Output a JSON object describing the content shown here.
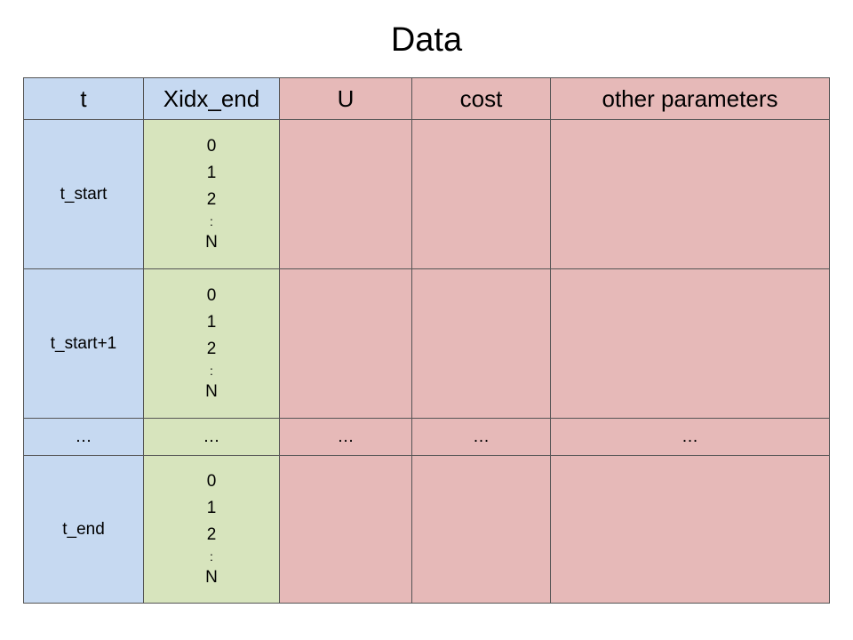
{
  "title": "Data",
  "headers": [
    "t",
    "Xidx_end",
    "U",
    "cost",
    "other parameters"
  ],
  "rows": [
    {
      "t": "t_start",
      "indices": [
        "0",
        "1",
        "2",
        ":",
        "N"
      ]
    },
    {
      "t": "t_start+1",
      "indices": [
        "0",
        "1",
        "2",
        ":",
        "N"
      ]
    },
    {
      "ellipsis": [
        "…",
        "…",
        "…",
        "…",
        "…"
      ]
    },
    {
      "t": "t_end",
      "indices": [
        "0",
        "1",
        "2",
        ":",
        "N"
      ]
    }
  ],
  "colors": {
    "t_column": "#c6d9f1",
    "xidx_column": "#d7e4bd",
    "other_columns": "#e6b9b8",
    "border": "#555555"
  }
}
